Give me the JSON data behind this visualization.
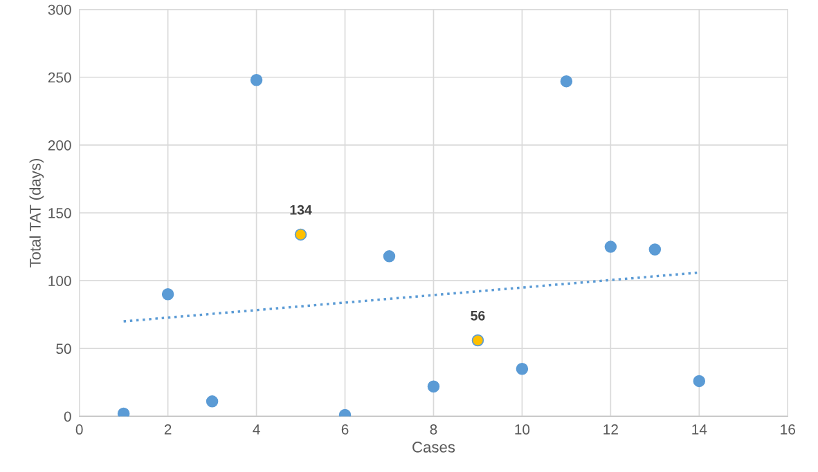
{
  "chart_data": {
    "type": "scatter",
    "xlabel": "Cases",
    "ylabel": "Total TAT (days)",
    "xlim": [
      0,
      16
    ],
    "xticks": [
      0,
      2,
      4,
      6,
      8,
      10,
      12,
      14,
      16
    ],
    "ylim": [
      0,
      300
    ],
    "yticks": [
      0,
      50,
      100,
      150,
      200,
      250,
      300
    ],
    "grid": true,
    "legend": false,
    "marker": "circle",
    "series": [
      {
        "x": [
          1,
          2,
          3,
          4,
          5,
          6,
          7,
          8,
          9,
          10,
          11,
          12,
          13,
          14
        ],
        "values": [
          2,
          90,
          11,
          248,
          134,
          1,
          118,
          22,
          56,
          35,
          247,
          125,
          123,
          26
        ],
        "color": "#5b9bd5",
        "colors": [
          "#5b9bd5",
          "#5b9bd5",
          "#5b9bd5",
          "#5b9bd5",
          "#ffc000",
          "#5b9bd5",
          "#5b9bd5",
          "#5b9bd5",
          "#ffc000",
          "#5b9bd5",
          "#5b9bd5",
          "#5b9bd5",
          "#5b9bd5",
          "#5b9bd5"
        ],
        "value_labels": [
          null,
          null,
          null,
          null,
          "134",
          null,
          null,
          null,
          "56",
          null,
          null,
          null,
          null,
          null
        ]
      },
      {
        "type": "line",
        "x": [
          1,
          14
        ],
        "values": [
          70,
          106
        ],
        "color": "#5b9bd5",
        "line_style": "dotted",
        "marker": "none"
      }
    ]
  }
}
